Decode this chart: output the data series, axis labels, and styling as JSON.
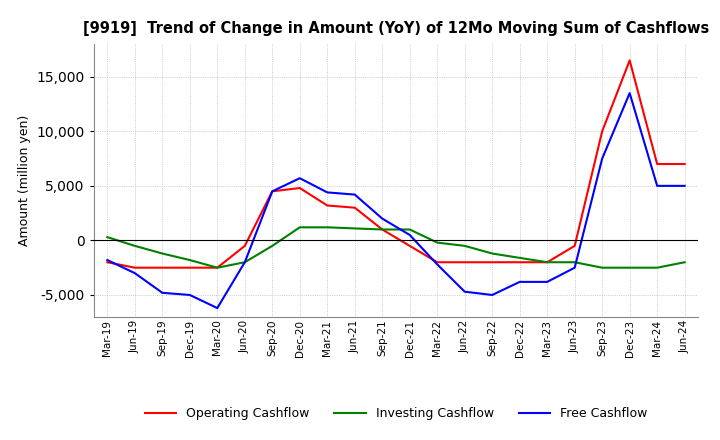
{
  "title": "[9919]  Trend of Change in Amount (YoY) of 12Mo Moving Sum of Cashflows",
  "ylabel": "Amount (million yen)",
  "x_labels": [
    "Mar-19",
    "Jun-19",
    "Sep-19",
    "Dec-19",
    "Mar-20",
    "Jun-20",
    "Sep-20",
    "Dec-20",
    "Mar-21",
    "Jun-21",
    "Sep-21",
    "Dec-21",
    "Mar-22",
    "Jun-22",
    "Sep-22",
    "Dec-22",
    "Mar-23",
    "Jun-23",
    "Sep-23",
    "Dec-23",
    "Mar-24",
    "Jun-24"
  ],
  "operating_cashflow": [
    -2000,
    -2500,
    -2500,
    -2500,
    -2500,
    -500,
    4500,
    4800,
    3200,
    3000,
    1000,
    -500,
    -2000,
    -2000,
    -2000,
    -2000,
    -2000,
    -500,
    10000,
    16500,
    7000,
    7000
  ],
  "investing_cashflow": [
    300,
    -500,
    -1200,
    -1800,
    -2500,
    -2000,
    -500,
    1200,
    1200,
    1100,
    1000,
    1000,
    -200,
    -500,
    -1200,
    -1600,
    -2000,
    -2000,
    -2500,
    -2500,
    -2500,
    -2000
  ],
  "free_cashflow": [
    -1800,
    -3000,
    -4800,
    -5000,
    -6200,
    -2000,
    4500,
    5700,
    4400,
    4200,
    2000,
    500,
    -2200,
    -4700,
    -5000,
    -3800,
    -3800,
    -2500,
    7500,
    13500,
    5000,
    5000
  ],
  "operating_color": "#ff0000",
  "investing_color": "#008000",
  "free_color": "#0000ff",
  "ylim": [
    -7000,
    18000
  ],
  "yticks": [
    -5000,
    0,
    5000,
    10000,
    15000
  ],
  "background_color": "#ffffff",
  "grid_color": "#aaaaaa"
}
